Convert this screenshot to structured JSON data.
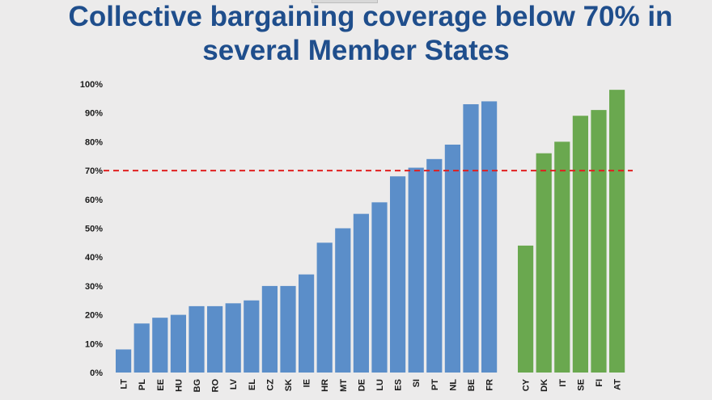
{
  "title_lines": [
    "Collective bargaining coverage below 70% in",
    "several Member States"
  ],
  "colors": {
    "title": "#1f4e8c",
    "blue_bar": "#5b8ec9",
    "green_bar": "#6aa84f",
    "reference_line": "#e02020",
    "axis_text": "#1a1a1a"
  },
  "chart_data": {
    "type": "bar",
    "ylim": [
      0,
      100
    ],
    "yticks": [
      "0%",
      "10%",
      "20%",
      "30%",
      "40%",
      "50%",
      "60%",
      "70%",
      "80%",
      "90%",
      "100%"
    ],
    "reference_line": {
      "value": 70,
      "style": "dashed",
      "color": "#e02020"
    },
    "grid": false,
    "groups": [
      {
        "color": "#5b8ec9",
        "categories": [
          "LT",
          "PL",
          "EE",
          "HU",
          "BG",
          "RO",
          "LV",
          "EL",
          "CZ",
          "SK",
          "IE",
          "HR",
          "MT",
          "DE",
          "LU",
          "ES",
          "SI",
          "PT",
          "NL",
          "BE",
          "FR"
        ],
        "values": [
          8,
          17,
          19,
          20,
          23,
          23,
          24,
          25,
          30,
          30,
          34,
          45,
          50,
          55,
          59,
          68,
          71,
          74,
          79,
          93,
          94
        ]
      },
      {
        "color": "#6aa84f",
        "categories": [
          "CY",
          "DK",
          "IT",
          "SE",
          "FI",
          "AT"
        ],
        "values": [
          44,
          76,
          80,
          89,
          91,
          98
        ]
      }
    ]
  }
}
